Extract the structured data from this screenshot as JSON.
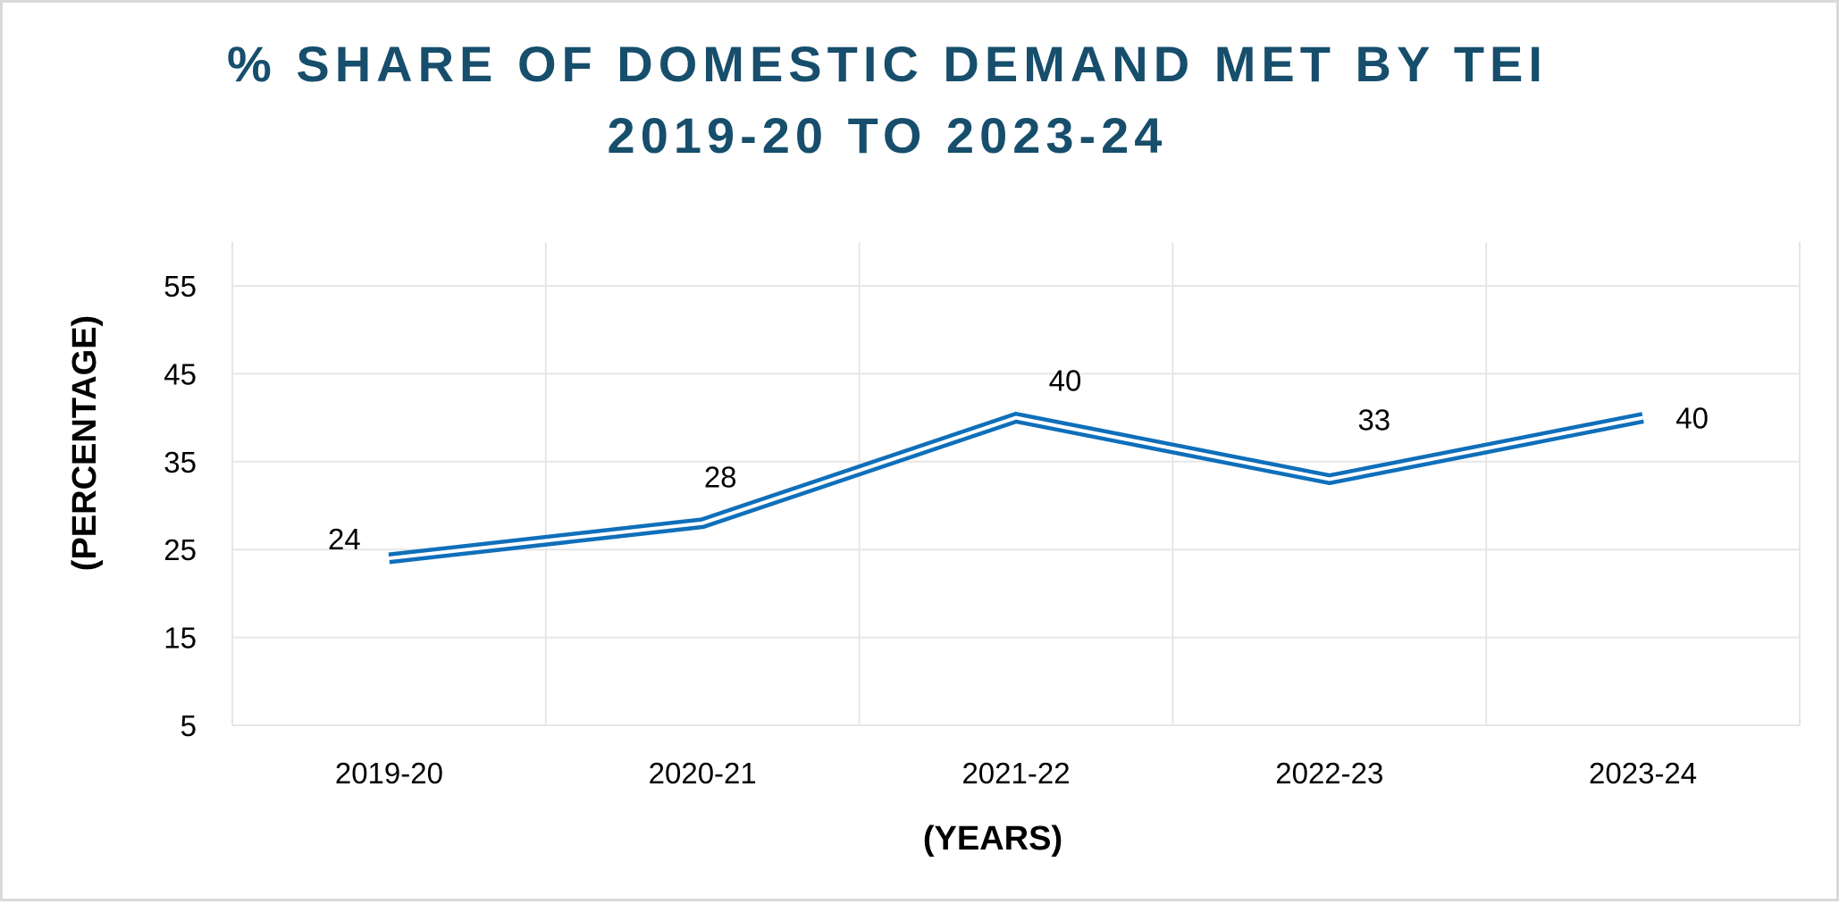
{
  "chart_data": {
    "type": "line",
    "title_lines": [
      "% SHARE OF DOMESTIC DEMAND MET BY TEI",
      "2019-20 TO 2023-24"
    ],
    "xlabel": "(YEARS)",
    "ylabel": "(PERCENTAGE)",
    "categories": [
      "2019-20",
      "2020-21",
      "2021-22",
      "2022-23",
      "2023-24"
    ],
    "series": [
      {
        "values": [
          24,
          28,
          40,
          33,
          40
        ],
        "color": "#0f6fba",
        "line_style": "double"
      }
    ],
    "ylim": [
      5,
      60
    ],
    "yticks": [
      5,
      15,
      25,
      35,
      45,
      55
    ],
    "grid": true,
    "legend": "none",
    "frame_color": "#d9d9d9",
    "title_color": "#174e6c"
  }
}
